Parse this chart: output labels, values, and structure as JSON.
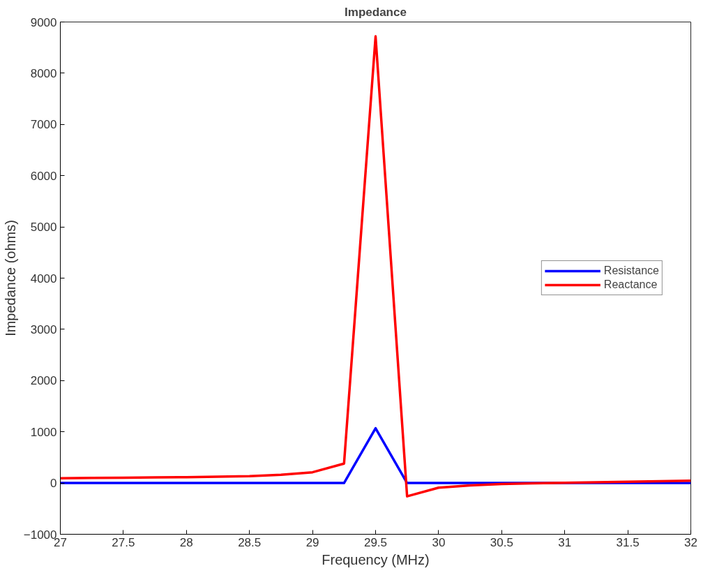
{
  "chart_data": {
    "type": "line",
    "title": "Impedance",
    "xlabel": "Frequency (MHz)",
    "ylabel": "Impedance (ohms)",
    "x": [
      27,
      27.25,
      27.5,
      27.75,
      28,
      28.25,
      28.5,
      28.75,
      29,
      29.25,
      29.5,
      29.75,
      30,
      30.25,
      30.5,
      30.75,
      31,
      31.25,
      31.5,
      31.75,
      32
    ],
    "series": [
      {
        "name": "Resistance",
        "color": "#0000ff",
        "values": [
          0,
          0,
          0,
          0,
          0,
          0,
          0,
          0,
          0,
          0,
          1070,
          0,
          0,
          0,
          0,
          0,
          0,
          0,
          0,
          0,
          0
        ]
      },
      {
        "name": "Reactance",
        "color": "#ff0000",
        "values": [
          95,
          100,
          105,
          110,
          115,
          125,
          135,
          160,
          210,
          380,
          8720,
          -260,
          -90,
          -45,
          -20,
          -5,
          5,
          15,
          25,
          35,
          45
        ]
      }
    ],
    "xlim": [
      27,
      32
    ],
    "xticks": [
      27,
      27.5,
      28,
      28.5,
      29,
      29.5,
      30,
      30.5,
      31,
      31.5,
      32
    ],
    "ylim": [
      -1000,
      9000
    ],
    "yticks": [
      -1000,
      0,
      1000,
      2000,
      3000,
      4000,
      5000,
      6000,
      7000,
      8000,
      9000
    ],
    "grid": false,
    "legend": "right",
    "line_style": "solid"
  }
}
